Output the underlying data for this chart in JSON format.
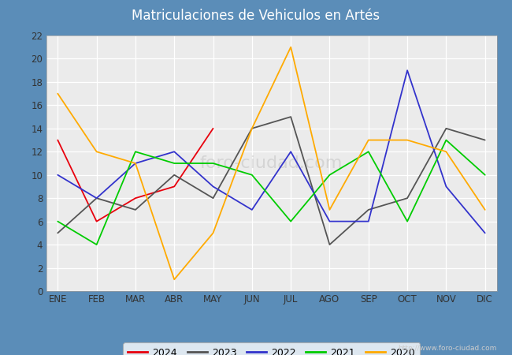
{
  "title": "Matriculaciones de Vehiculos en Artés",
  "months": [
    "ENE",
    "FEB",
    "MAR",
    "ABR",
    "MAY",
    "JUN",
    "JUL",
    "AGO",
    "SEP",
    "OCT",
    "NOV",
    "DIC"
  ],
  "series": {
    "2024": {
      "color": "#e8000d",
      "values": [
        13,
        6,
        8,
        9,
        14,
        null,
        null,
        null,
        null,
        null,
        null,
        null
      ]
    },
    "2023": {
      "color": "#555555",
      "values": [
        5,
        8,
        7,
        10,
        8,
        14,
        15,
        4,
        7,
        8,
        14,
        13
      ]
    },
    "2022": {
      "color": "#3333cc",
      "values": [
        10,
        8,
        11,
        12,
        9,
        7,
        12,
        6,
        6,
        19,
        9,
        5
      ]
    },
    "2021": {
      "color": "#00cc00",
      "values": [
        6,
        4,
        12,
        11,
        11,
        10,
        6,
        10,
        12,
        6,
        13,
        10
      ]
    },
    "2020": {
      "color": "#ffaa00",
      "values": [
        17,
        12,
        11,
        1,
        5,
        14,
        21,
        7,
        13,
        13,
        12,
        7
      ]
    }
  },
  "ylim": [
    0,
    22
  ],
  "yticks": [
    0,
    2,
    4,
    6,
    8,
    10,
    12,
    14,
    16,
    18,
    20,
    22
  ],
  "outer_bg": "#5b8db8",
  "plot_bg": "#ebebeb",
  "title_fontsize": 12,
  "title_color": "white",
  "watermark": "http://www.foro-ciudad.com",
  "watermark_plot": "FORO-CIUDAD.COM",
  "legend_order": [
    "2024",
    "2023",
    "2022",
    "2021",
    "2020"
  ]
}
